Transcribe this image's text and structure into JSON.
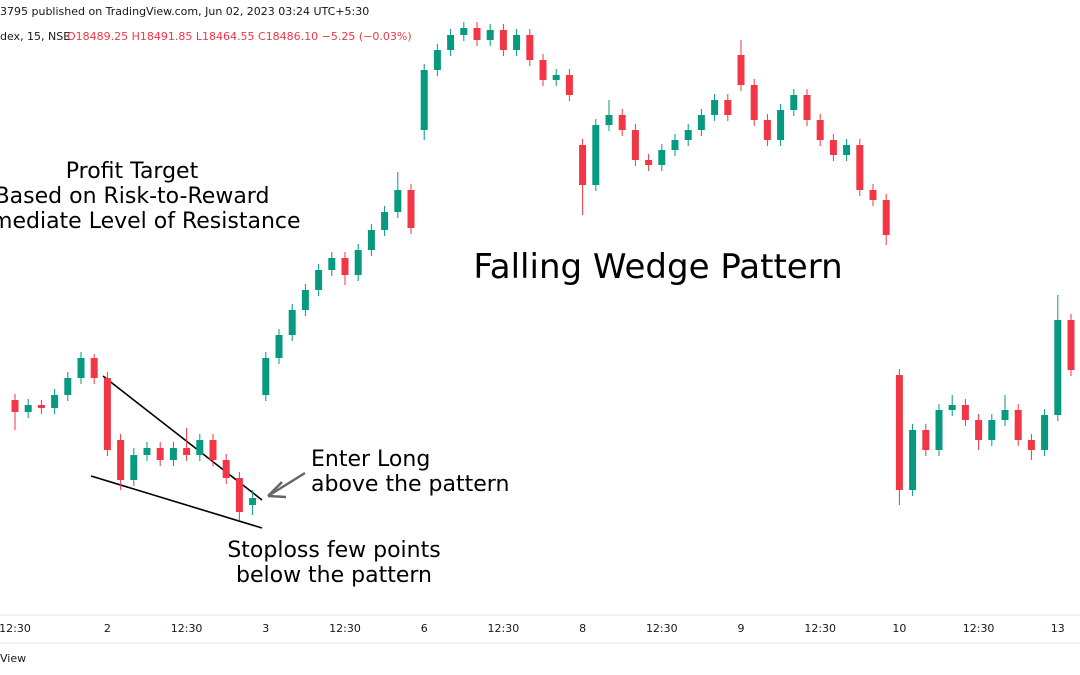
{
  "header": {
    "published": "3795 published on TradingView.com, Jun 02, 2023 03:24 UTC+5:30",
    "symbol": "dex, 15, NSE",
    "ohlc": "O18489.25 H18491.85 L18464.55 C18486.10 −5.25 (−0.03%)"
  },
  "footer": {
    "brand": "View"
  },
  "chart_data": {
    "type": "candlestick",
    "title": "Falling Wedge Pattern",
    "annotations": {
      "profit_target": [
        "Profit Target",
        "Based on Risk-to-Reward",
        "immediate Level of Resistance"
      ],
      "entry": [
        "Enter Long",
        "above the pattern"
      ],
      "stoploss": [
        "Stoploss few points",
        "below the pattern"
      ]
    },
    "categories": [
      "12:30",
      null,
      null,
      null,
      null,
      null,
      null,
      "2",
      null,
      null,
      null,
      null,
      null,
      "12:30",
      null,
      null,
      null,
      null,
      null,
      "3",
      null,
      null,
      null,
      null,
      null,
      "12:30",
      null,
      null,
      null,
      null,
      null,
      "6",
      null,
      null,
      null,
      null,
      null,
      "12:30",
      null,
      null,
      null,
      null,
      null,
      "8",
      null,
      null,
      null,
      null,
      null,
      "12:30",
      null,
      null,
      null,
      null,
      null,
      "9",
      null,
      null,
      null,
      null,
      null,
      "12:30",
      null,
      null,
      null,
      null,
      null,
      "10",
      null,
      null,
      null,
      null,
      null,
      "12:30",
      null,
      null,
      null,
      null,
      null,
      "13",
      null
    ],
    "up_color": "#089981",
    "down_color": "#f23645",
    "ylim": [
      18180,
      18780
    ],
    "open": [
      18400,
      18388,
      18395,
      18392,
      18405,
      18422,
      18442,
      18422,
      18360,
      18320,
      18345,
      18352,
      18340,
      18352,
      18345,
      18360,
      18340,
      18322,
      18295,
      18405,
      18442,
      18465,
      18490,
      18510,
      18530,
      18542,
      18525,
      18550,
      18570,
      18588,
      18610,
      18670,
      18730,
      18750,
      18765,
      18772,
      18760,
      18770,
      18750,
      18765,
      18740,
      18720,
      18725,
      18655,
      18615,
      18675,
      18685,
      18670,
      18640,
      18635,
      18650,
      18660,
      18670,
      18685,
      18700,
      18745,
      18715,
      18680,
      18660,
      18690,
      18705,
      18680,
      18660,
      18645,
      18655,
      18610,
      18600,
      18425,
      18310,
      18370,
      18350,
      18390,
      18395,
      18380,
      18360,
      18380,
      18390,
      18360,
      18350,
      18385,
      18480
    ],
    "high": [
      18406,
      18401,
      18400,
      18411,
      18428,
      18448,
      18446,
      18428,
      18366,
      18352,
      18358,
      18358,
      18358,
      18372,
      18366,
      18366,
      18346,
      18328,
      18310,
      18448,
      18471,
      18496,
      18516,
      18536,
      18548,
      18548,
      18556,
      18576,
      18594,
      18628,
      18616,
      18736,
      18756,
      18771,
      18778,
      18778,
      18776,
      18776,
      18771,
      18771,
      18746,
      18731,
      18731,
      18661,
      18681,
      18700,
      18691,
      18676,
      18646,
      18656,
      18666,
      18676,
      18691,
      18706,
      18706,
      18760,
      18721,
      18686,
      18696,
      18711,
      18711,
      18686,
      18666,
      18661,
      18661,
      18616,
      18606,
      18431,
      18376,
      18376,
      18396,
      18405,
      18401,
      18386,
      18386,
      18405,
      18396,
      18366,
      18391,
      18505,
      18486
    ],
    "low": [
      18370,
      18382,
      18386,
      18386,
      18399,
      18416,
      18416,
      18344,
      18310,
      18314,
      18339,
      18334,
      18334,
      18339,
      18339,
      18334,
      18316,
      18280,
      18285,
      18399,
      18436,
      18459,
      18484,
      18504,
      18524,
      18515,
      18519,
      18544,
      18564,
      18582,
      18566,
      18660,
      18724,
      18744,
      18759,
      18754,
      18754,
      18744,
      18744,
      18734,
      18714,
      18714,
      18699,
      18585,
      18609,
      18669,
      18664,
      18634,
      18629,
      18629,
      18644,
      18654,
      18664,
      18679,
      18679,
      18709,
      18674,
      18654,
      18654,
      18684,
      18674,
      18654,
      18639,
      18639,
      18604,
      18594,
      18555,
      18295,
      18304,
      18344,
      18344,
      18384,
      18374,
      18350,
      18354,
      18374,
      18354,
      18340,
      18344,
      18379,
      18424
    ],
    "close": [
      18388,
      18395,
      18392,
      18405,
      18422,
      18442,
      18422,
      18350,
      18320,
      18345,
      18352,
      18340,
      18352,
      18345,
      18360,
      18340,
      18322,
      18288,
      18302,
      18442,
      18465,
      18490,
      18510,
      18530,
      18542,
      18525,
      18550,
      18570,
      18588,
      18610,
      18572,
      18730,
      18750,
      18765,
      18772,
      18760,
      18770,
      18750,
      18765,
      18740,
      18720,
      18725,
      18705,
      18615,
      18675,
      18685,
      18670,
      18640,
      18635,
      18650,
      18660,
      18670,
      18685,
      18700,
      18685,
      18715,
      18680,
      18660,
      18690,
      18705,
      18680,
      18660,
      18645,
      18655,
      18610,
      18600,
      18565,
      18310,
      18370,
      18350,
      18390,
      18395,
      18380,
      18360,
      18380,
      18390,
      18360,
      18350,
      18385,
      18480,
      18430
    ]
  }
}
